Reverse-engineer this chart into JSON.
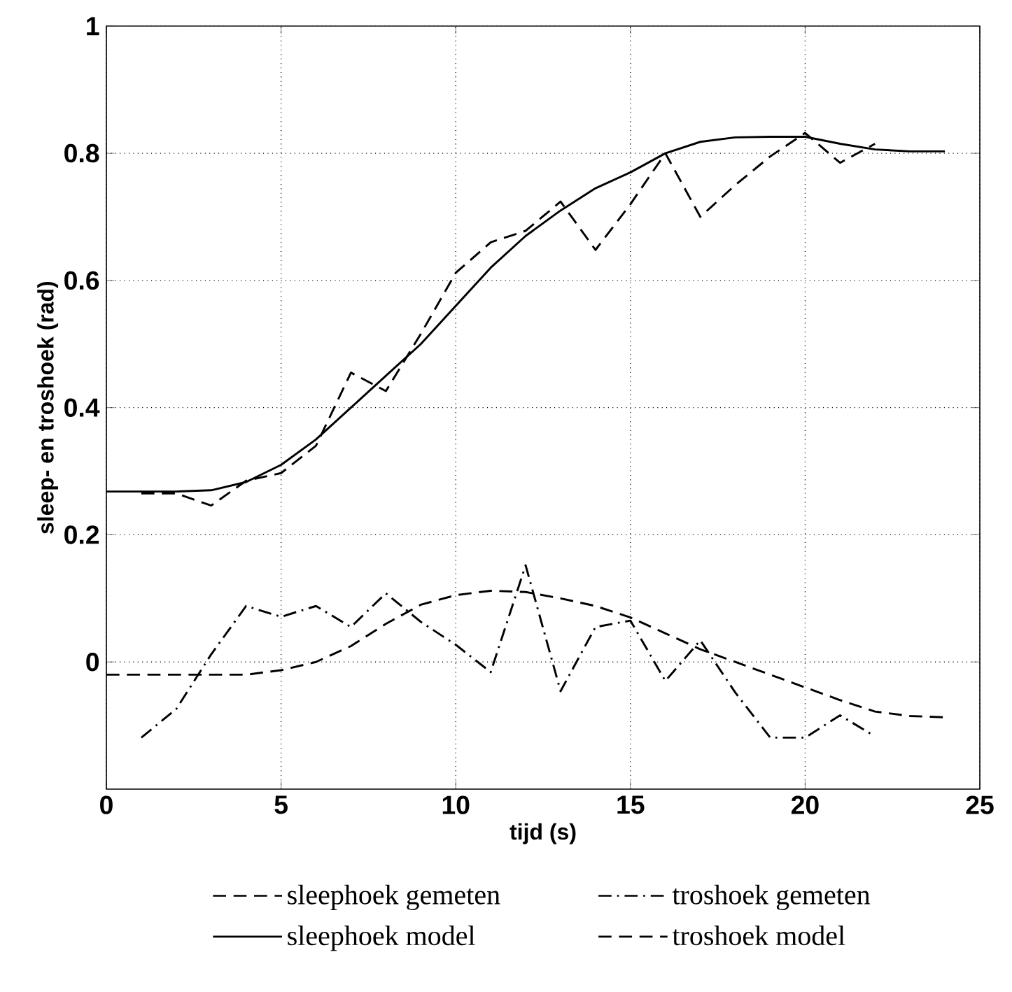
{
  "chart_data": {
    "type": "line",
    "xlabel": "tijd (s)",
    "ylabel": "sleep- en troshoek (rad)",
    "xlim": [
      0,
      25
    ],
    "ylim": [
      -0.2,
      1
    ],
    "xticks": [
      0,
      5,
      10,
      15,
      20,
      25
    ],
    "yticks": [
      0,
      0.2,
      0.4,
      0.6,
      0.8,
      1
    ],
    "grid": true,
    "legend": "bottom",
    "marker": "none",
    "series": [
      {
        "name": "sleephoek gemeten",
        "color": "#000000",
        "line_style": "dashed",
        "x": [
          1,
          2,
          3,
          4,
          5,
          6,
          7,
          8,
          9,
          10,
          11,
          12,
          13,
          14,
          15,
          16,
          17,
          18,
          19,
          20,
          21,
          22
        ],
        "values": [
          0.265,
          0.265,
          0.246,
          0.285,
          0.297,
          0.34,
          0.455,
          0.426,
          0.516,
          0.612,
          0.66,
          0.678,
          0.724,
          0.648,
          0.72,
          0.8,
          0.7,
          0.75,
          0.795,
          0.832,
          0.785,
          0.815
        ]
      },
      {
        "name": "troshoek gemeten",
        "color": "#000000",
        "line_style": "dashdot",
        "x": [
          1,
          2,
          3,
          4,
          5,
          6,
          7,
          8,
          9,
          10,
          11,
          12,
          13,
          14,
          15,
          16,
          17,
          18,
          19,
          20,
          21,
          22
        ],
        "values": [
          -0.119,
          -0.074,
          0.012,
          0.088,
          0.071,
          0.088,
          0.055,
          0.108,
          0.063,
          0.027,
          -0.016,
          0.152,
          -0.046,
          0.055,
          0.065,
          -0.03,
          0.034,
          -0.048,
          -0.119,
          -0.119,
          -0.084,
          -0.117
        ]
      },
      {
        "name": "sleephoek model",
        "color": "#000000",
        "line_style": "solid",
        "x": [
          0,
          1,
          2,
          3,
          4,
          5,
          6,
          7,
          8,
          9,
          10,
          11,
          12,
          13,
          14,
          15,
          16,
          17,
          18,
          19,
          20,
          21,
          22,
          23,
          24
        ],
        "values": [
          0.268,
          0.268,
          0.268,
          0.27,
          0.283,
          0.31,
          0.35,
          0.4,
          0.45,
          0.5,
          0.56,
          0.62,
          0.67,
          0.71,
          0.745,
          0.77,
          0.8,
          0.818,
          0.825,
          0.826,
          0.826,
          0.815,
          0.806,
          0.803,
          0.803
        ]
      },
      {
        "name": "troshoek model",
        "color": "#000000",
        "line_style": "dashed",
        "x": [
          0,
          1,
          2,
          3,
          4,
          5,
          6,
          7,
          8,
          9,
          10,
          11,
          12,
          13,
          14,
          15,
          16,
          17,
          18,
          19,
          20,
          21,
          22,
          23,
          24
        ],
        "values": [
          -0.02,
          -0.02,
          -0.02,
          -0.02,
          -0.02,
          -0.013,
          0.0,
          0.025,
          0.06,
          0.09,
          0.105,
          0.112,
          0.11,
          0.1,
          0.088,
          0.07,
          0.045,
          0.02,
          0.0,
          -0.02,
          -0.04,
          -0.06,
          -0.078,
          -0.085,
          -0.087
        ]
      }
    ]
  }
}
